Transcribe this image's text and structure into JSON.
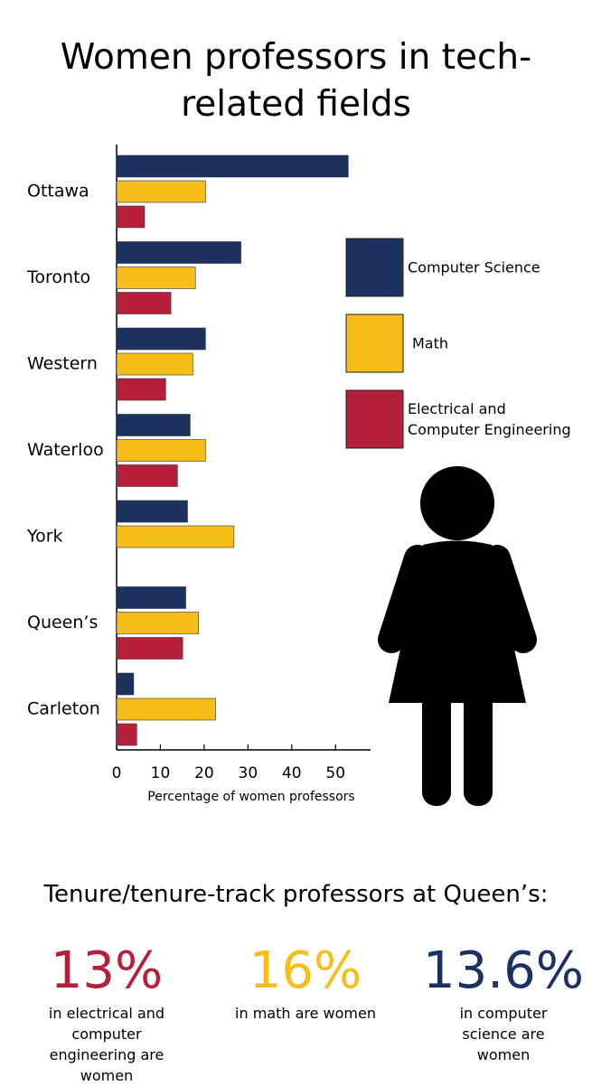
{
  "chart_data": {
    "type": "bar",
    "orientation": "horizontal",
    "title": "Women professors in tech-related fields",
    "xlabel": "Percentage of women professors",
    "categories": [
      "Ottawa",
      "Toronto",
      "Western",
      "Waterloo",
      "York",
      "Queen’s",
      "Carleton"
    ],
    "series": [
      {
        "name": "Computer Science",
        "color": "#1c3160",
        "values": [
          52.9,
          28.4,
          20.3,
          16.8,
          16.2,
          15.8,
          3.9
        ]
      },
      {
        "name": "Math",
        "color": "#f7bd1b",
        "values": [
          20.3,
          18,
          17.4,
          20.3,
          26.8,
          18.7,
          22.6
        ]
      },
      {
        "name": "Electrical and Computer Engineering",
        "color": "#b61f3a",
        "values": [
          6.4,
          12.4,
          11.2,
          13.9,
          null,
          15.1,
          4.6
        ]
      }
    ],
    "xlim": [
      0,
      58
    ],
    "xticks": [
      0,
      10,
      20,
      30,
      40,
      50
    ]
  },
  "footer": {
    "heading": "Tenure/tenure-track professors at Queen’s:",
    "stats": [
      {
        "value": "13%",
        "text": "in electrical and computer engineering are women",
        "color": "#b61f3a"
      },
      {
        "value": "16%",
        "text": "in math are women",
        "color": "#f7bd1b"
      },
      {
        "value": "13.6%",
        "text": "in computer science are women",
        "color": "#1c3160"
      }
    ]
  }
}
